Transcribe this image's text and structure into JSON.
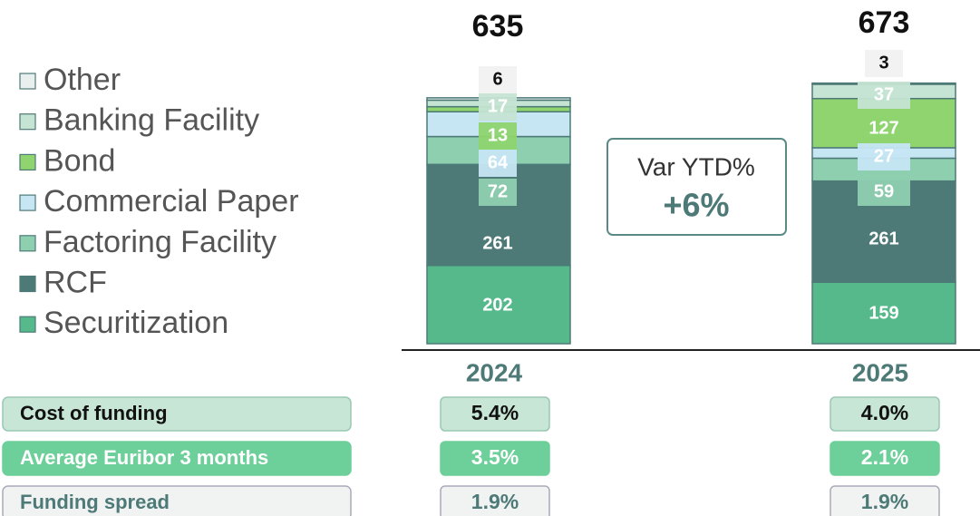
{
  "chart_data": {
    "type": "stacked_bar",
    "categories": [
      "2024",
      "2025"
    ],
    "totals": [
      635,
      673
    ],
    "series": [
      {
        "name": "Securitization",
        "color": "#56b98c",
        "values": [
          202,
          159
        ]
      },
      {
        "name": "RCF",
        "color": "#4d7a77",
        "values": [
          261,
          261
        ]
      },
      {
        "name": "Factoring Facility",
        "color": "#8ecfb0",
        "values": [
          72,
          59
        ]
      },
      {
        "name": "Commercial Paper",
        "color": "#c6e6f4",
        "values": [
          64,
          27
        ]
      },
      {
        "name": "Bond",
        "color": "#8fd46f",
        "values": [
          13,
          127
        ]
      },
      {
        "name": "Banking Facility",
        "color": "#c5e4d3",
        "values": [
          17,
          37
        ]
      },
      {
        "name": "Other",
        "color": "#e9eeee",
        "values": [
          6,
          3
        ]
      }
    ],
    "variance": {
      "label": "Var  YTD%",
      "value": "+6%"
    },
    "table": {
      "rows": [
        {
          "label": "Cost of funding",
          "values": [
            "5.4%",
            "4.0%"
          ]
        },
        {
          "label": "Average Euribor 3 months",
          "values": [
            "3.5%",
            "2.1%"
          ]
        },
        {
          "label": "Funding spread",
          "values": [
            "1.9%",
            "1.9%"
          ]
        }
      ]
    }
  }
}
